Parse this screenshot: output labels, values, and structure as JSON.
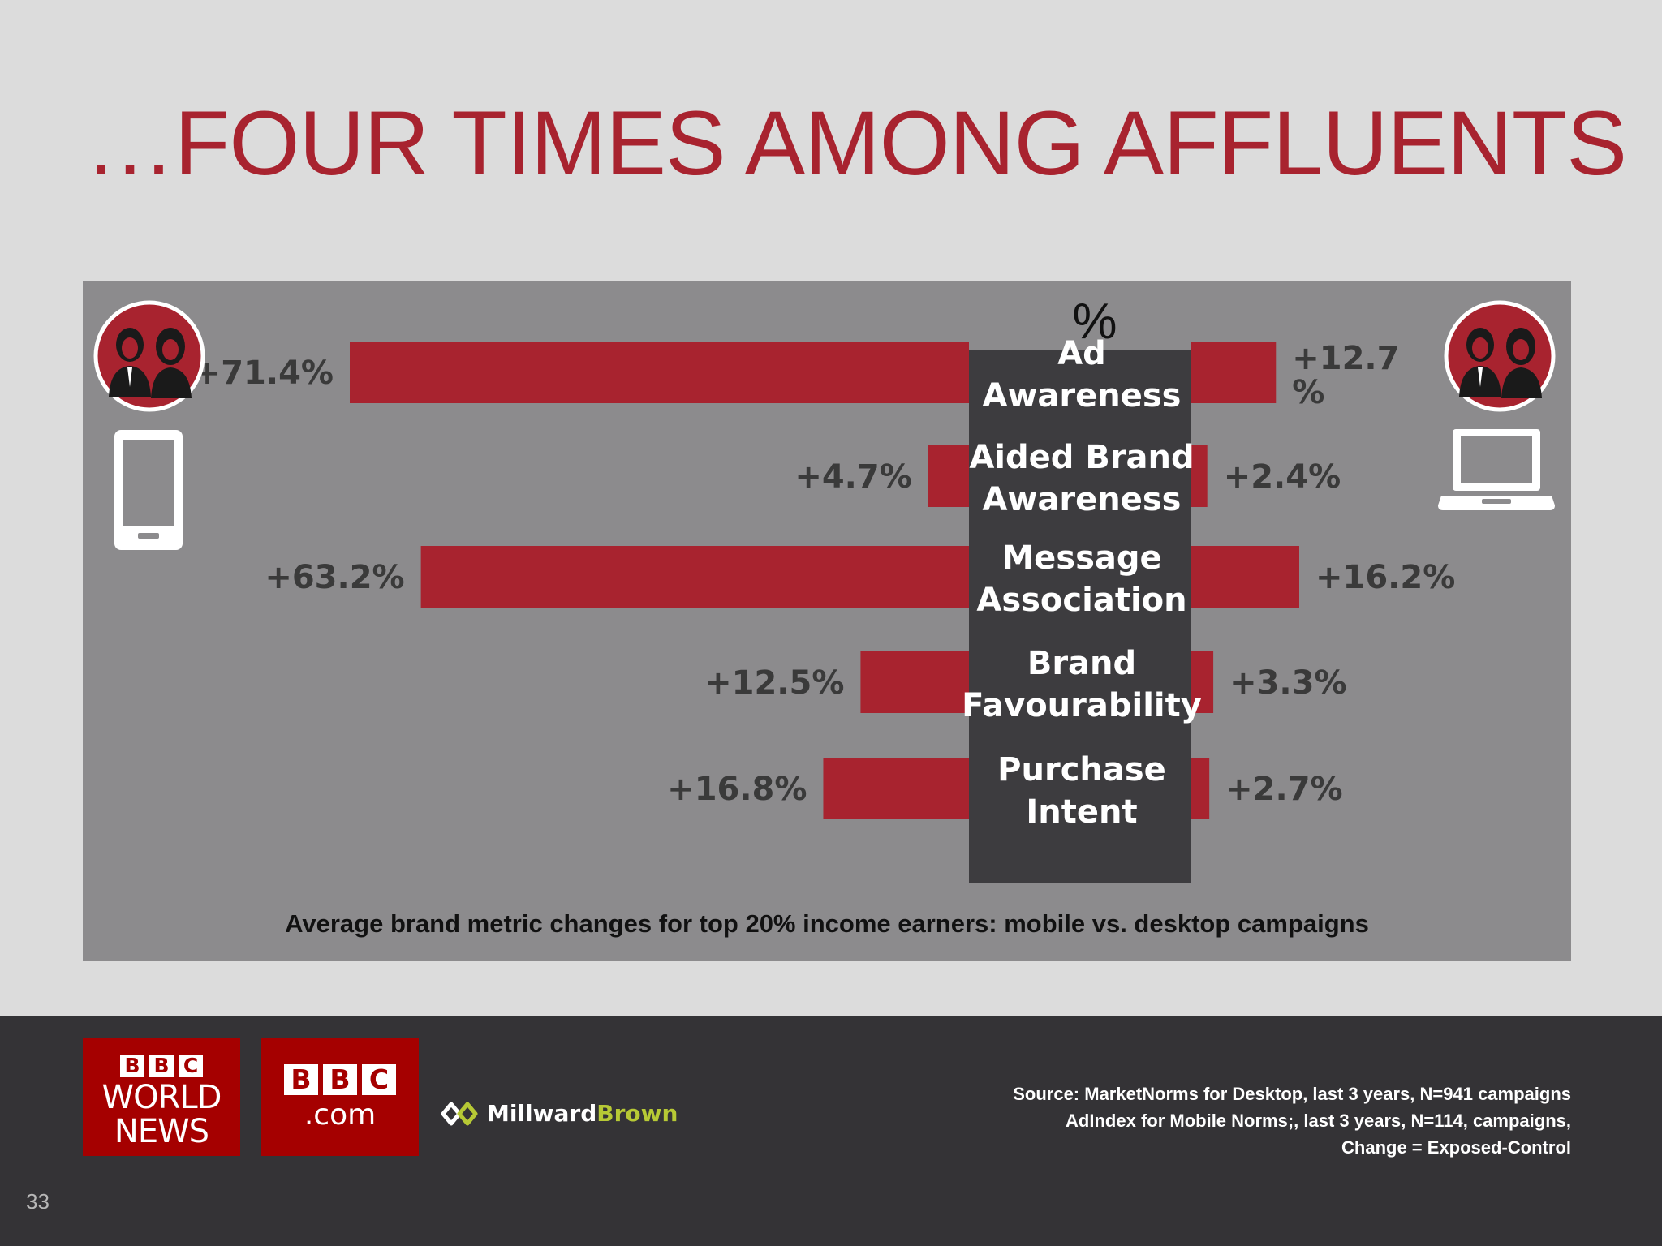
{
  "title": "…FOUR TIMES AMONG AFFLUENTS",
  "colors": {
    "accent": "#a8232f",
    "panel": "#8c8b8d",
    "center_box": "#3d3c3f",
    "footer": "#343336",
    "logo_red": "#a50000"
  },
  "icons": {
    "left_people": "people-avatar-icon",
    "left_device": "mobile-phone-icon",
    "right_people": "people-avatar-icon",
    "right_device": "laptop-icon"
  },
  "chart_data": {
    "type": "bar",
    "orientation": "horizontal-diverging",
    "unit_label": "%",
    "categories": [
      "Ad Awareness",
      "Aided Brand Awareness",
      "Message Association",
      "Brand Favourability",
      "Purchase Intent"
    ],
    "category_lines": [
      [
        "Ad",
        "Awareness"
      ],
      [
        "Aided Brand",
        "Awareness"
      ],
      [
        "Message",
        "Association"
      ],
      [
        "Brand",
        "Favourability"
      ],
      [
        "Purchase",
        "Intent"
      ]
    ],
    "series": [
      {
        "side": "left",
        "device": "mobile",
        "values": [
          71.4,
          4.7,
          63.2,
          12.5,
          16.8
        ],
        "labels": [
          "+71.4%",
          "+4.7%",
          "+63.2%",
          "+12.5%",
          "+16.8%"
        ]
      },
      {
        "side": "right",
        "device": "desktop",
        "values": [
          12.7,
          2.4,
          16.2,
          3.3,
          2.7
        ],
        "labels": [
          "+12.7 %",
          "+2.4%",
          "+16.2%",
          "+3.3%",
          "+2.7%"
        ]
      }
    ],
    "caption": "Average brand metric changes for top 20% income earners: mobile vs. desktop campaigns",
    "grid": false
  },
  "footer": {
    "logo1": {
      "blocks": [
        "B",
        "B",
        "C"
      ],
      "line1": "WORLD",
      "line2": "NEWS"
    },
    "logo2": {
      "blocks": [
        "B",
        "B",
        "C"
      ],
      "line": ".com"
    },
    "millward_brown": {
      "part1": "Millward",
      "part2": "Brown"
    },
    "source_lines": [
      "Source:  MarketNorms for Desktop, last 3 years, N=941 campaigns",
      "AdIndex for Mobile Norms;, last 3 years, N=114, campaigns,",
      "Change = Exposed-Control"
    ],
    "page_number": "33"
  }
}
